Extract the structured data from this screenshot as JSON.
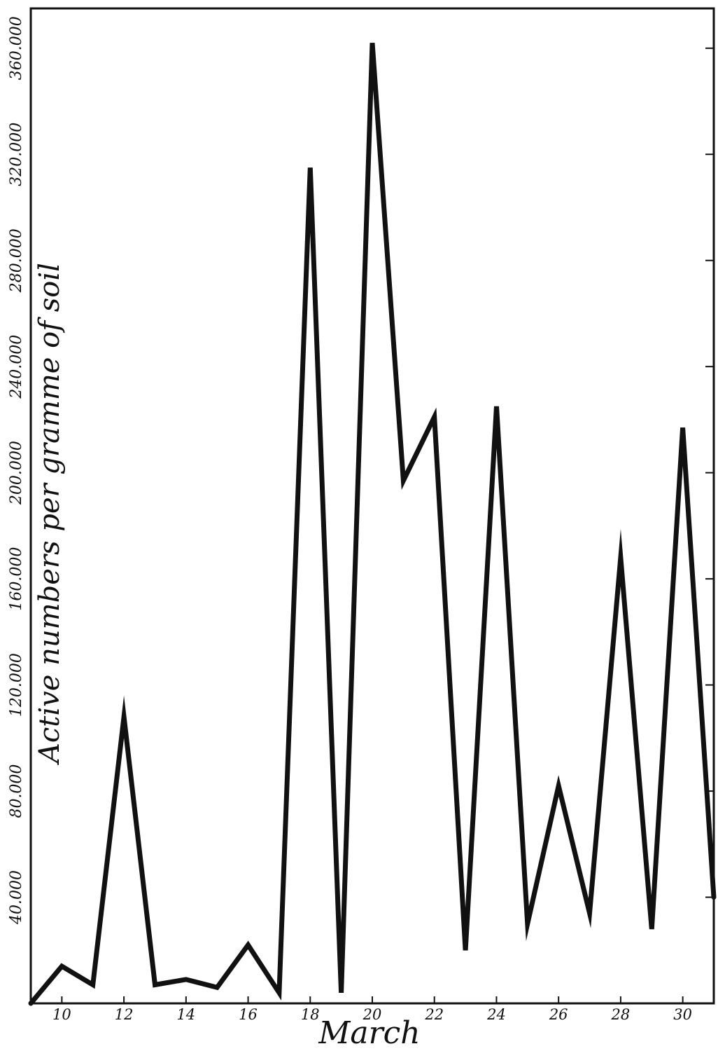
{
  "chart_data": {
    "type": "line",
    "title": "",
    "xlabel": "March",
    "ylabel": "Active numbers per gramme of soil",
    "xlim": [
      9,
      31
    ],
    "ylim": [
      0,
      375000
    ],
    "x_ticks": [
      10,
      12,
      14,
      16,
      18,
      20,
      22,
      24,
      26,
      28,
      30
    ],
    "x_tick_labels": [
      "10",
      "12",
      "14",
      "16",
      "18",
      "20",
      "22",
      "24",
      "26",
      "28",
      "30"
    ],
    "y_ticks": [
      40000,
      80000,
      120000,
      160000,
      200000,
      240000,
      280000,
      320000,
      360000
    ],
    "y_tick_labels": [
      "40.000",
      "80.000",
      "120.000",
      "160.000",
      "200.000",
      "240.000",
      "280.000",
      "320.000",
      "360.000"
    ],
    "grid": false,
    "legend": "none",
    "line_color": "#111111",
    "series": [
      {
        "x": [
          9,
          10,
          11,
          12,
          13,
          14,
          15,
          16,
          17,
          18,
          19,
          20,
          21,
          22,
          23,
          24,
          25,
          26,
          27,
          28,
          29,
          30,
          31
        ],
        "values": [
          0,
          14000,
          7000,
          108000,
          7000,
          9000,
          6000,
          22000,
          4000,
          315000,
          4000,
          362000,
          197000,
          221000,
          20000,
          225000,
          30000,
          82000,
          34000,
          168000,
          28000,
          217000,
          40000
        ]
      }
    ]
  }
}
